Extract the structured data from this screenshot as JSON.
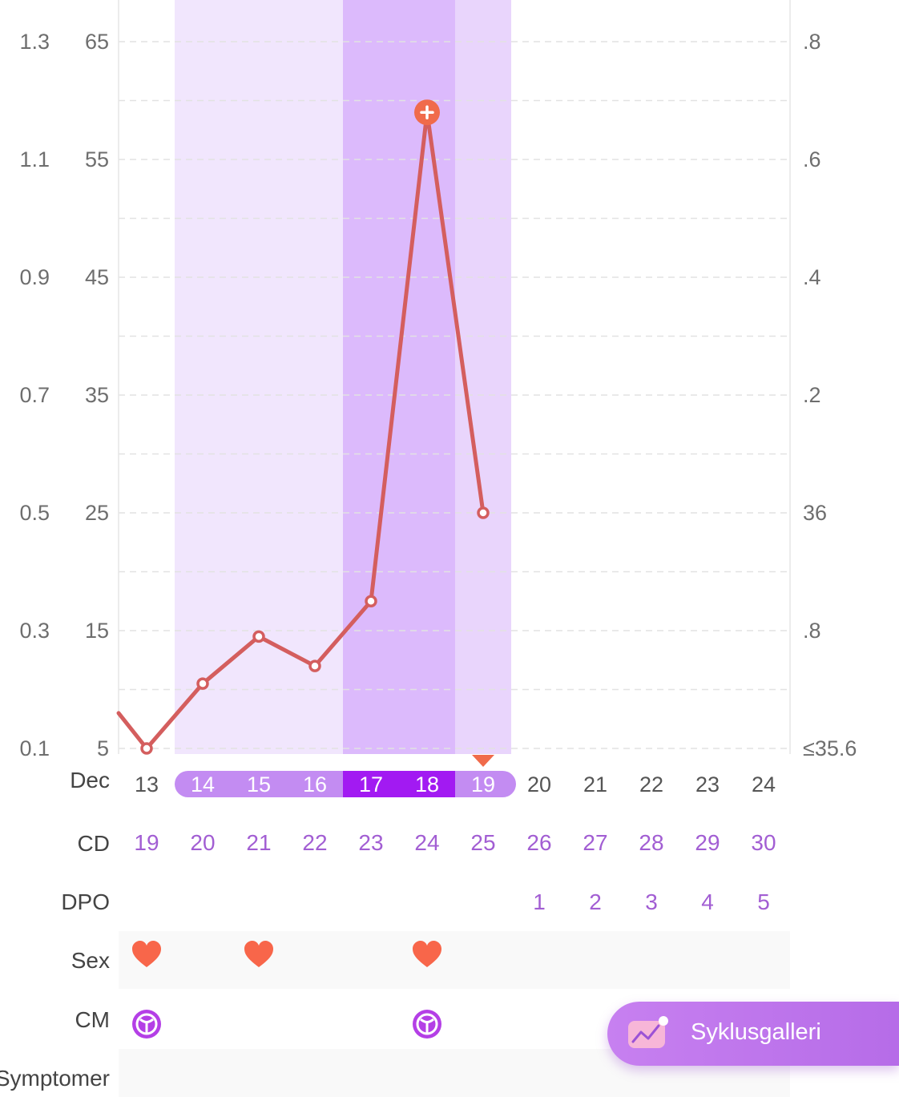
{
  "chart_data": {
    "type": "line",
    "y_axis_left_outer": {
      "ticks": [
        "1.3",
        "1.1",
        "0.9",
        "0.7",
        "0.5",
        "0.3",
        "0.1"
      ]
    },
    "y_axis_left_inner": {
      "ticks": [
        "65",
        "55",
        "45",
        "35",
        "25",
        "15",
        "5"
      ],
      "ylim": [
        5,
        65
      ]
    },
    "y_axis_right": {
      "ticks": [
        ".8",
        ".6",
        ".4",
        ".2",
        "36",
        ".8",
        "≤35.6"
      ]
    },
    "month_label": "Dec",
    "dates": [
      "13",
      "14",
      "15",
      "16",
      "17",
      "18",
      "19",
      "20",
      "21",
      "22",
      "23",
      "24"
    ],
    "series": [
      {
        "x": [
          "12",
          "13",
          "14",
          "15",
          "16",
          "17",
          "18",
          "19"
        ],
        "values": [
          11,
          5,
          10.5,
          14.5,
          12,
          17.5,
          59,
          25
        ],
        "peak_index": 6,
        "color": "#d45e5e"
      }
    ],
    "fertile_window": [
      "14",
      "19"
    ],
    "high_fertility": [
      "17",
      "18"
    ],
    "ovulation_marker": "19",
    "grid": "dashed"
  },
  "rows": {
    "cd": {
      "label": "CD",
      "values": [
        "19",
        "20",
        "21",
        "22",
        "23",
        "24",
        "25",
        "26",
        "27",
        "28",
        "29",
        "30"
      ]
    },
    "dpo": {
      "label": "DPO",
      "values": [
        "",
        "",
        "",
        "",
        "",
        "",
        "",
        "1",
        "2",
        "3",
        "4",
        "5"
      ]
    },
    "sex": {
      "label": "Sex",
      "icon": "heart-icon",
      "dates": [
        "13",
        "15",
        "18"
      ]
    },
    "cm": {
      "label": "CM",
      "icon": "cervical-mucus-icon",
      "dates": [
        "13",
        "18"
      ]
    },
    "symptoms": {
      "label": "Symptomer"
    }
  },
  "colors": {
    "fertile_light": "#f1e6fd",
    "fertile_mid": "#e9d5fc",
    "fertile_high": "#dcbafc",
    "pill_light": "#c38cf2",
    "pill_dark": "#a21af2",
    "line": "#d45e5e",
    "marker": "#f06b4b",
    "purple_text": "#a25ed3",
    "heart": "#f8664a"
  },
  "gallery_button": {
    "label": "Syklusgalleri",
    "icon": "chart-gallery-icon"
  }
}
